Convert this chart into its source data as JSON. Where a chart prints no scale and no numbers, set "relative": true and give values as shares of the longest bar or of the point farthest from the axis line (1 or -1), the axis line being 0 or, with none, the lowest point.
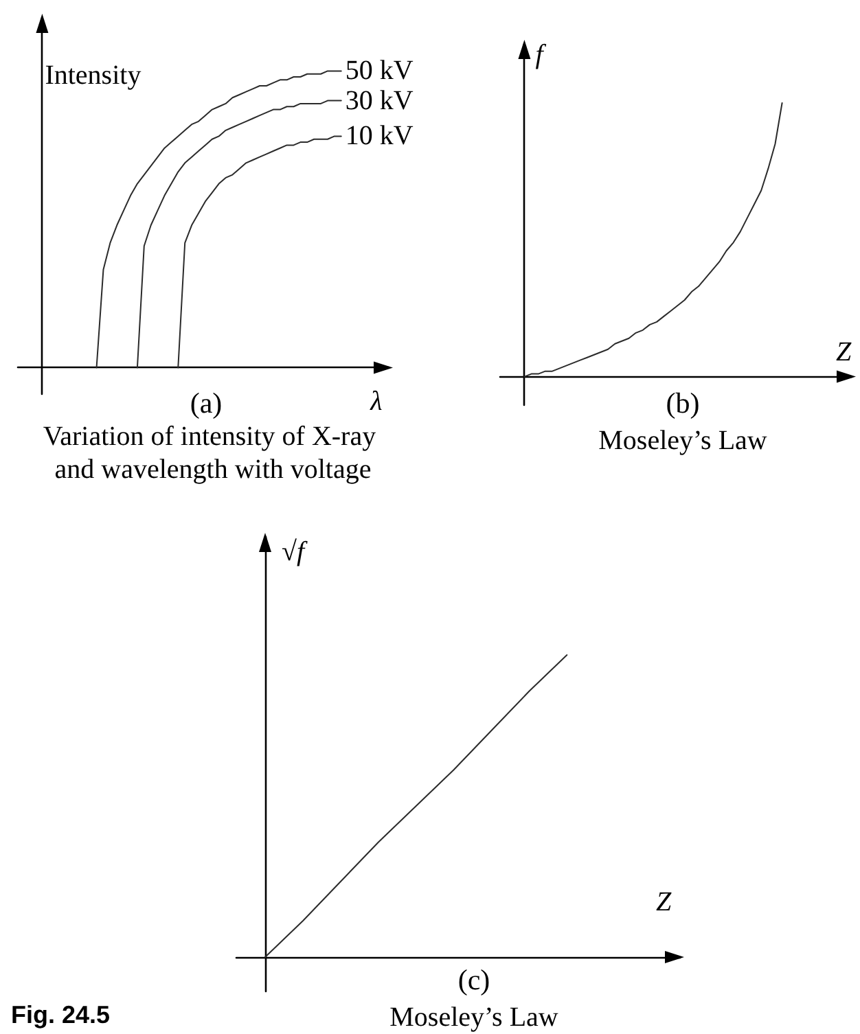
{
  "chart_data": [
    {
      "type": "line",
      "title": "(a)",
      "subtitle": "Variation of intensity of X-ray and wavelength with voltage",
      "xlabel": "λ",
      "ylabel": "Intensity",
      "relative": true,
      "tick_labels": false,
      "grid": false,
      "legend": false,
      "marker": "none",
      "line_style": "solid",
      "categories": [
        null,
        null,
        null,
        null,
        null,
        null,
        null,
        null,
        null,
        null,
        null,
        null,
        null,
        null,
        null,
        null,
        null,
        null,
        null,
        null,
        null,
        null,
        null,
        null,
        null,
        null,
        null,
        null,
        null,
        null,
        null,
        null,
        null,
        null,
        null,
        null,
        null,
        null,
        null,
        null,
        null,
        null,
        null,
        null,
        null,
        null,
        null,
        null,
        null,
        null,
        null,
        null
      ],
      "series": [
        {
          "name": "50 kV",
          "color": "#2b2b2b",
          "values": [
            null,
            null,
            null,
            null,
            null,
            null,
            null,
            null,
            0,
            0.33,
            0.42,
            0.48,
            0.53,
            0.58,
            0.62,
            0.65,
            0.68,
            0.71,
            0.74,
            0.76,
            0.78,
            0.8,
            0.82,
            0.83,
            0.85,
            0.87,
            0.88,
            0.89,
            0.91,
            0.92,
            0.93,
            0.94,
            0.95,
            0.95,
            0.96,
            0.97,
            0.97,
            0.98,
            0.98,
            0.99,
            0.99,
            0.99,
            1,
            1,
            1,
            null,
            null,
            null,
            null,
            null,
            null,
            null
          ]
        },
        {
          "name": "30 kV",
          "color": "#2b2b2b",
          "values": [
            null,
            null,
            null,
            null,
            null,
            null,
            null,
            null,
            null,
            null,
            null,
            null,
            null,
            null,
            0,
            0.41,
            0.48,
            0.53,
            0.58,
            0.62,
            0.66,
            0.69,
            0.71,
            0.73,
            0.75,
            0.77,
            0.78,
            0.8,
            0.81,
            0.82,
            0.83,
            0.84,
            0.85,
            0.86,
            0.87,
            0.87,
            0.88,
            0.88,
            0.89,
            0.89,
            0.89,
            0.89,
            0.9,
            0.9,
            0.9,
            null,
            null,
            null,
            null,
            null,
            null,
            null
          ]
        },
        {
          "name": "10 kV",
          "color": "#2b2b2b",
          "values": [
            null,
            null,
            null,
            null,
            null,
            null,
            null,
            null,
            null,
            null,
            null,
            null,
            null,
            null,
            null,
            null,
            null,
            null,
            null,
            null,
            0,
            0.42,
            0.48,
            0.52,
            0.56,
            0.59,
            0.62,
            0.64,
            0.65,
            0.67,
            0.69,
            0.7,
            0.71,
            0.72,
            0.73,
            0.74,
            0.75,
            0.75,
            0.76,
            0.76,
            0.77,
            0.77,
            0.77,
            0.78,
            0.78,
            null,
            null,
            null,
            null,
            null,
            null,
            null
          ]
        }
      ]
    },
    {
      "type": "line",
      "title": "(b)",
      "subtitle": "Moseley’s Law",
      "xlabel": "Z",
      "ylabel": "f",
      "relative": true,
      "tick_labels": false,
      "grid": false,
      "legend": false,
      "marker": "none",
      "line_style": "solid",
      "categories": [
        null,
        null,
        null,
        null,
        null,
        null,
        null,
        null,
        null,
        null,
        null,
        null,
        null,
        null,
        null,
        null,
        null,
        null,
        null,
        null,
        null,
        null,
        null,
        null,
        null,
        null,
        null,
        null,
        null,
        null,
        null,
        null,
        null,
        null,
        null,
        null,
        null,
        null,
        null,
        null,
        null,
        null,
        null,
        null,
        null,
        null,
        null,
        null
      ],
      "series": [
        {
          "color": "#2b2b2b",
          "values": [
            0,
            0.01,
            0.01,
            0.02,
            0.02,
            0.03,
            0.04,
            0.05,
            0.06,
            0.07,
            0.08,
            0.09,
            0.1,
            0.12,
            0.13,
            0.14,
            0.16,
            0.17,
            0.19,
            0.2,
            0.22,
            0.24,
            0.26,
            0.28,
            0.31,
            0.33,
            0.36,
            0.39,
            0.42,
            0.46,
            0.49,
            0.53,
            0.58,
            0.63,
            0.68,
            0.76,
            0.85,
            1,
            null,
            null,
            null,
            null,
            null,
            null,
            null,
            null,
            null,
            null
          ]
        }
      ]
    },
    {
      "type": "line",
      "title": "(c)",
      "subtitle": "Moseley’s Law",
      "xlabel": "Z",
      "ylabel": "√f",
      "relative": true,
      "tick_labels": false,
      "grid": false,
      "legend": false,
      "marker": "none",
      "line_style": "solid",
      "annotations": [
        "Fig. 24.5"
      ],
      "categories": [
        null,
        null,
        null,
        null,
        null,
        null,
        null,
        null,
        null,
        null,
        null,
        null
      ],
      "series": [
        {
          "color": "#2b2b2b",
          "values": [
            0,
            0.12,
            0.25,
            0.38,
            0.5,
            0.62,
            0.75,
            0.88,
            1,
            null,
            null,
            null
          ]
        }
      ]
    }
  ]
}
